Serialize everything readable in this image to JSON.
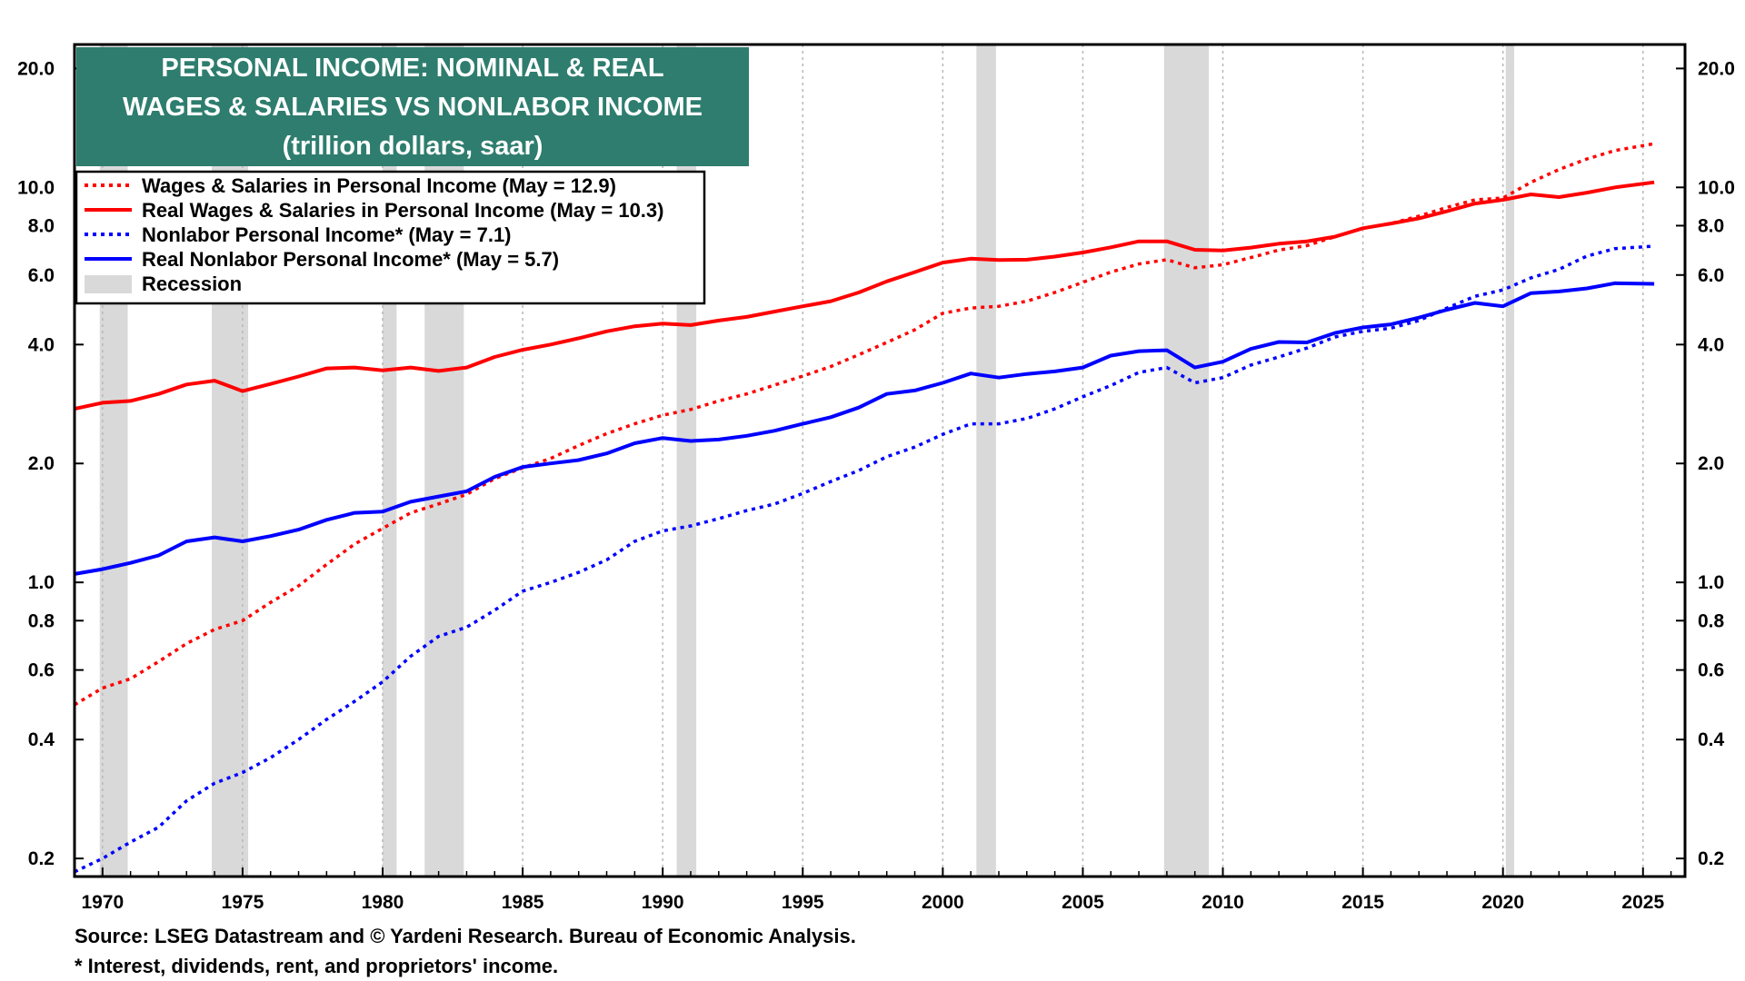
{
  "chart_data": {
    "type": "line",
    "title_lines": [
      "PERSONAL INCOME: NOMINAL & REAL",
      "WAGES & SALARIES VS NONLABOR INCOME",
      "(trillion dollars, saar)"
    ],
    "yscale": "log",
    "ylim": [
      0.18,
      23
    ],
    "xlim": [
      1969,
      2026.5
    ],
    "y_ticks": [
      "0.2",
      "0.4",
      "0.6",
      "0.8",
      "1.0",
      "2.0",
      "4.0",
      "6.0",
      "8.0",
      "10.0",
      "20.0"
    ],
    "x_ticks": [
      "1970",
      "1975",
      "1980",
      "1985",
      "1990",
      "1995",
      "2000",
      "2005",
      "2010",
      "2015",
      "2020",
      "2025"
    ],
    "grid": "vertical dotted",
    "legend_placement": "top-left",
    "recessions": [
      [
        1969.9,
        1970.9
      ],
      [
        1973.9,
        1975.2
      ],
      [
        1980.0,
        1980.5
      ],
      [
        1981.5,
        1982.9
      ],
      [
        1990.5,
        1991.2
      ],
      [
        2001.2,
        2001.9
      ],
      [
        2007.9,
        2009.5
      ],
      [
        2020.1,
        2020.4
      ]
    ],
    "recession_label": "Recession",
    "recession_color": "#d9d9d9",
    "series": [
      {
        "name": "Wages & Salaries in Personal Income (May = 12.9)",
        "color": "#ff0000",
        "style": "dotted",
        "points": [
          [
            1969,
            0.49
          ],
          [
            1970,
            0.54
          ],
          [
            1971,
            0.57
          ],
          [
            1972,
            0.63
          ],
          [
            1973,
            0.7
          ],
          [
            1974,
            0.76
          ],
          [
            1975,
            0.8
          ],
          [
            1976,
            0.89
          ],
          [
            1977,
            0.98
          ],
          [
            1978,
            1.11
          ],
          [
            1979,
            1.25
          ],
          [
            1980,
            1.37
          ],
          [
            1981,
            1.5
          ],
          [
            1982,
            1.58
          ],
          [
            1983,
            1.67
          ],
          [
            1984,
            1.83
          ],
          [
            1985,
            1.95
          ],
          [
            1986,
            2.06
          ],
          [
            1987,
            2.22
          ],
          [
            1988,
            2.38
          ],
          [
            1989,
            2.52
          ],
          [
            1990,
            2.65
          ],
          [
            1991,
            2.74
          ],
          [
            1992,
            2.88
          ],
          [
            1993,
            3.0
          ],
          [
            1994,
            3.16
          ],
          [
            1995,
            3.33
          ],
          [
            1996,
            3.52
          ],
          [
            1997,
            3.77
          ],
          [
            1998,
            4.05
          ],
          [
            1999,
            4.36
          ],
          [
            2000,
            4.8
          ],
          [
            2001,
            4.95
          ],
          [
            2002,
            5.0
          ],
          [
            2003,
            5.15
          ],
          [
            2004,
            5.42
          ],
          [
            2005,
            5.75
          ],
          [
            2006,
            6.1
          ],
          [
            2007,
            6.4
          ],
          [
            2008,
            6.56
          ],
          [
            2009,
            6.26
          ],
          [
            2010,
            6.37
          ],
          [
            2011,
            6.64
          ],
          [
            2012,
            6.94
          ],
          [
            2013,
            7.12
          ],
          [
            2014,
            7.5
          ],
          [
            2015,
            7.88
          ],
          [
            2016,
            8.1
          ],
          [
            2017,
            8.46
          ],
          [
            2018,
            8.9
          ],
          [
            2019,
            9.3
          ],
          [
            2020,
            9.4
          ],
          [
            2021,
            10.3
          ],
          [
            2022,
            11.1
          ],
          [
            2023,
            11.8
          ],
          [
            2024,
            12.4
          ],
          [
            2025.4,
            12.9
          ]
        ]
      },
      {
        "name": "Real Wages & Salaries in Personal Income (May = 10.3)",
        "color": "#ff0000",
        "style": "solid",
        "points": [
          [
            1969,
            2.75
          ],
          [
            1970,
            2.85
          ],
          [
            1971,
            2.88
          ],
          [
            1972,
            3.0
          ],
          [
            1973,
            3.17
          ],
          [
            1974,
            3.24
          ],
          [
            1975,
            3.05
          ],
          [
            1976,
            3.18
          ],
          [
            1977,
            3.32
          ],
          [
            1978,
            3.48
          ],
          [
            1979,
            3.5
          ],
          [
            1980,
            3.44
          ],
          [
            1981,
            3.5
          ],
          [
            1982,
            3.43
          ],
          [
            1983,
            3.5
          ],
          [
            1984,
            3.72
          ],
          [
            1985,
            3.88
          ],
          [
            1986,
            4.0
          ],
          [
            1987,
            4.15
          ],
          [
            1988,
            4.32
          ],
          [
            1989,
            4.45
          ],
          [
            1990,
            4.52
          ],
          [
            1991,
            4.48
          ],
          [
            1992,
            4.6
          ],
          [
            1993,
            4.7
          ],
          [
            1994,
            4.85
          ],
          [
            1995,
            5.0
          ],
          [
            1996,
            5.15
          ],
          [
            1997,
            5.42
          ],
          [
            1998,
            5.78
          ],
          [
            1999,
            6.1
          ],
          [
            2000,
            6.45
          ],
          [
            2001,
            6.6
          ],
          [
            2002,
            6.55
          ],
          [
            2003,
            6.56
          ],
          [
            2004,
            6.68
          ],
          [
            2005,
            6.84
          ],
          [
            2006,
            7.05
          ],
          [
            2007,
            7.3
          ],
          [
            2008,
            7.3
          ],
          [
            2009,
            6.95
          ],
          [
            2010,
            6.92
          ],
          [
            2011,
            7.04
          ],
          [
            2012,
            7.2
          ],
          [
            2013,
            7.3
          ],
          [
            2014,
            7.5
          ],
          [
            2015,
            7.88
          ],
          [
            2016,
            8.1
          ],
          [
            2017,
            8.35
          ],
          [
            2018,
            8.7
          ],
          [
            2019,
            9.1
          ],
          [
            2020,
            9.3
          ],
          [
            2021,
            9.6
          ],
          [
            2022,
            9.45
          ],
          [
            2023,
            9.7
          ],
          [
            2024,
            10.0
          ],
          [
            2025.4,
            10.3
          ]
        ]
      },
      {
        "name": "Nonlabor Personal Income* (May = 7.1)",
        "color": "#0000ff",
        "style": "dotted",
        "points": [
          [
            1969,
            0.185
          ],
          [
            1970,
            0.2
          ],
          [
            1971,
            0.22
          ],
          [
            1972,
            0.24
          ],
          [
            1973,
            0.28
          ],
          [
            1974,
            0.31
          ],
          [
            1975,
            0.33
          ],
          [
            1976,
            0.36
          ],
          [
            1977,
            0.4
          ],
          [
            1978,
            0.45
          ],
          [
            1979,
            0.5
          ],
          [
            1980,
            0.56
          ],
          [
            1981,
            0.65
          ],
          [
            1982,
            0.73
          ],
          [
            1983,
            0.77
          ],
          [
            1984,
            0.85
          ],
          [
            1985,
            0.95
          ],
          [
            1986,
            1.0
          ],
          [
            1987,
            1.06
          ],
          [
            1988,
            1.14
          ],
          [
            1989,
            1.27
          ],
          [
            1990,
            1.35
          ],
          [
            1991,
            1.39
          ],
          [
            1992,
            1.45
          ],
          [
            1993,
            1.52
          ],
          [
            1994,
            1.58
          ],
          [
            1995,
            1.68
          ],
          [
            1996,
            1.8
          ],
          [
            1997,
            1.92
          ],
          [
            1998,
            2.08
          ],
          [
            1999,
            2.2
          ],
          [
            2000,
            2.37
          ],
          [
            2001,
            2.52
          ],
          [
            2002,
            2.52
          ],
          [
            2003,
            2.6
          ],
          [
            2004,
            2.75
          ],
          [
            2005,
            2.95
          ],
          [
            2006,
            3.15
          ],
          [
            2007,
            3.4
          ],
          [
            2008,
            3.5
          ],
          [
            2009,
            3.2
          ],
          [
            2010,
            3.3
          ],
          [
            2011,
            3.55
          ],
          [
            2012,
            3.72
          ],
          [
            2013,
            3.92
          ],
          [
            2014,
            4.18
          ],
          [
            2015,
            4.32
          ],
          [
            2016,
            4.4
          ],
          [
            2017,
            4.6
          ],
          [
            2018,
            4.95
          ],
          [
            2019,
            5.3
          ],
          [
            2020,
            5.5
          ],
          [
            2021,
            5.9
          ],
          [
            2022,
            6.2
          ],
          [
            2023,
            6.7
          ],
          [
            2024,
            7.0
          ],
          [
            2025.4,
            7.1
          ]
        ]
      },
      {
        "name": "Real Nonlabor Personal Income* (May = 5.7)",
        "color": "#0000ff",
        "style": "solid",
        "points": [
          [
            1969,
            1.05
          ],
          [
            1970,
            1.08
          ],
          [
            1971,
            1.12
          ],
          [
            1972,
            1.17
          ],
          [
            1973,
            1.27
          ],
          [
            1974,
            1.3
          ],
          [
            1975,
            1.27
          ],
          [
            1976,
            1.31
          ],
          [
            1977,
            1.36
          ],
          [
            1978,
            1.44
          ],
          [
            1979,
            1.5
          ],
          [
            1980,
            1.51
          ],
          [
            1981,
            1.6
          ],
          [
            1982,
            1.65
          ],
          [
            1983,
            1.7
          ],
          [
            1984,
            1.85
          ],
          [
            1985,
            1.96
          ],
          [
            1986,
            2.0
          ],
          [
            1987,
            2.04
          ],
          [
            1988,
            2.12
          ],
          [
            1989,
            2.25
          ],
          [
            1990,
            2.32
          ],
          [
            1991,
            2.28
          ],
          [
            1992,
            2.3
          ],
          [
            1993,
            2.35
          ],
          [
            1994,
            2.42
          ],
          [
            1995,
            2.52
          ],
          [
            1996,
            2.62
          ],
          [
            1997,
            2.77
          ],
          [
            1998,
            3.0
          ],
          [
            1999,
            3.06
          ],
          [
            2000,
            3.2
          ],
          [
            2001,
            3.38
          ],
          [
            2002,
            3.3
          ],
          [
            2003,
            3.37
          ],
          [
            2004,
            3.42
          ],
          [
            2005,
            3.5
          ],
          [
            2006,
            3.75
          ],
          [
            2007,
            3.85
          ],
          [
            2008,
            3.87
          ],
          [
            2009,
            3.5
          ],
          [
            2010,
            3.62
          ],
          [
            2011,
            3.9
          ],
          [
            2012,
            4.06
          ],
          [
            2013,
            4.05
          ],
          [
            2014,
            4.28
          ],
          [
            2015,
            4.42
          ],
          [
            2016,
            4.5
          ],
          [
            2017,
            4.68
          ],
          [
            2018,
            4.9
          ],
          [
            2019,
            5.1
          ],
          [
            2020,
            5.0
          ],
          [
            2021,
            5.4
          ],
          [
            2022,
            5.45
          ],
          [
            2023,
            5.55
          ],
          [
            2024,
            5.72
          ],
          [
            2025.4,
            5.7
          ]
        ]
      }
    ]
  },
  "footnotes": {
    "source": "Source: LSEG Datastream and © Yardeni Research. Bureau of Economic Analysis.",
    "note": "* Interest, dividends, rent, and proprietors' income."
  }
}
